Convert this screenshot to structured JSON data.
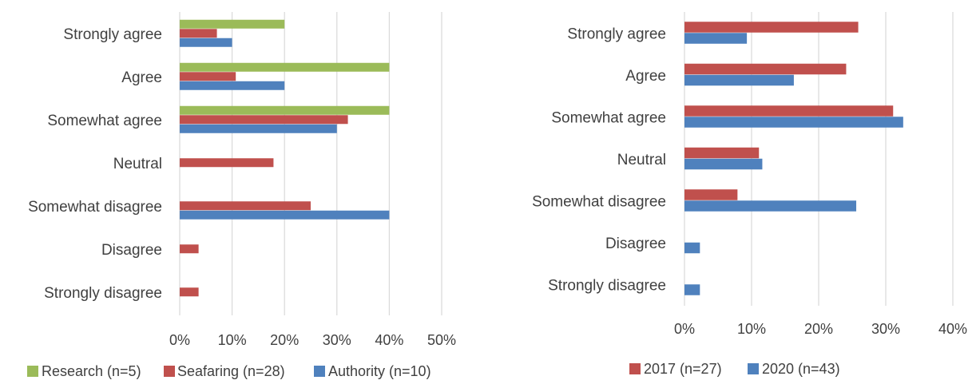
{
  "chart_data": [
    {
      "type": "bar",
      "orientation": "horizontal",
      "categories": [
        "Strongly agree",
        "Agree",
        "Somewhat agree",
        "Neutral",
        "Somewhat disagree",
        "Disagree",
        "Strongly disagree"
      ],
      "series": [
        {
          "name": "Research (n=5)",
          "color": "#9bbb59",
          "values": [
            20,
            40,
            40,
            0,
            0,
            0,
            0
          ]
        },
        {
          "name": "Seafaring (n=28)",
          "color": "#c0504d",
          "values": [
            7.1,
            10.7,
            32.1,
            17.9,
            25,
            3.6,
            3.6
          ]
        },
        {
          "name": "Authority (n=10)",
          "color": "#4f81bd",
          "values": [
            10,
            20,
            30,
            0,
            40,
            0,
            0
          ]
        }
      ],
      "xlim": [
        0,
        50
      ],
      "ticks": [
        "0%",
        "10%",
        "20%",
        "30%",
        "40%",
        "50%"
      ],
      "grid": true,
      "legend": "bottom"
    },
    {
      "type": "bar",
      "orientation": "horizontal",
      "categories": [
        "Strongly agree",
        "Agree",
        "Somewhat agree",
        "Neutral",
        "Somewhat disagree",
        "Disagree",
        "Strongly disagree"
      ],
      "series": [
        {
          "name": "2017 (n=27)",
          "color": "#c0504d",
          "values": [
            25.9,
            24.1,
            31.1,
            11.1,
            7.9,
            0,
            0
          ]
        },
        {
          "name": "2020 (n=43)",
          "color": "#4f81bd",
          "values": [
            9.3,
            16.3,
            32.6,
            11.6,
            25.6,
            2.3,
            2.3
          ]
        }
      ],
      "xlim": [
        0,
        40
      ],
      "ticks": [
        "0%",
        "10%",
        "20%",
        "30%",
        "40%"
      ],
      "grid": true,
      "legend": "bottom"
    }
  ]
}
